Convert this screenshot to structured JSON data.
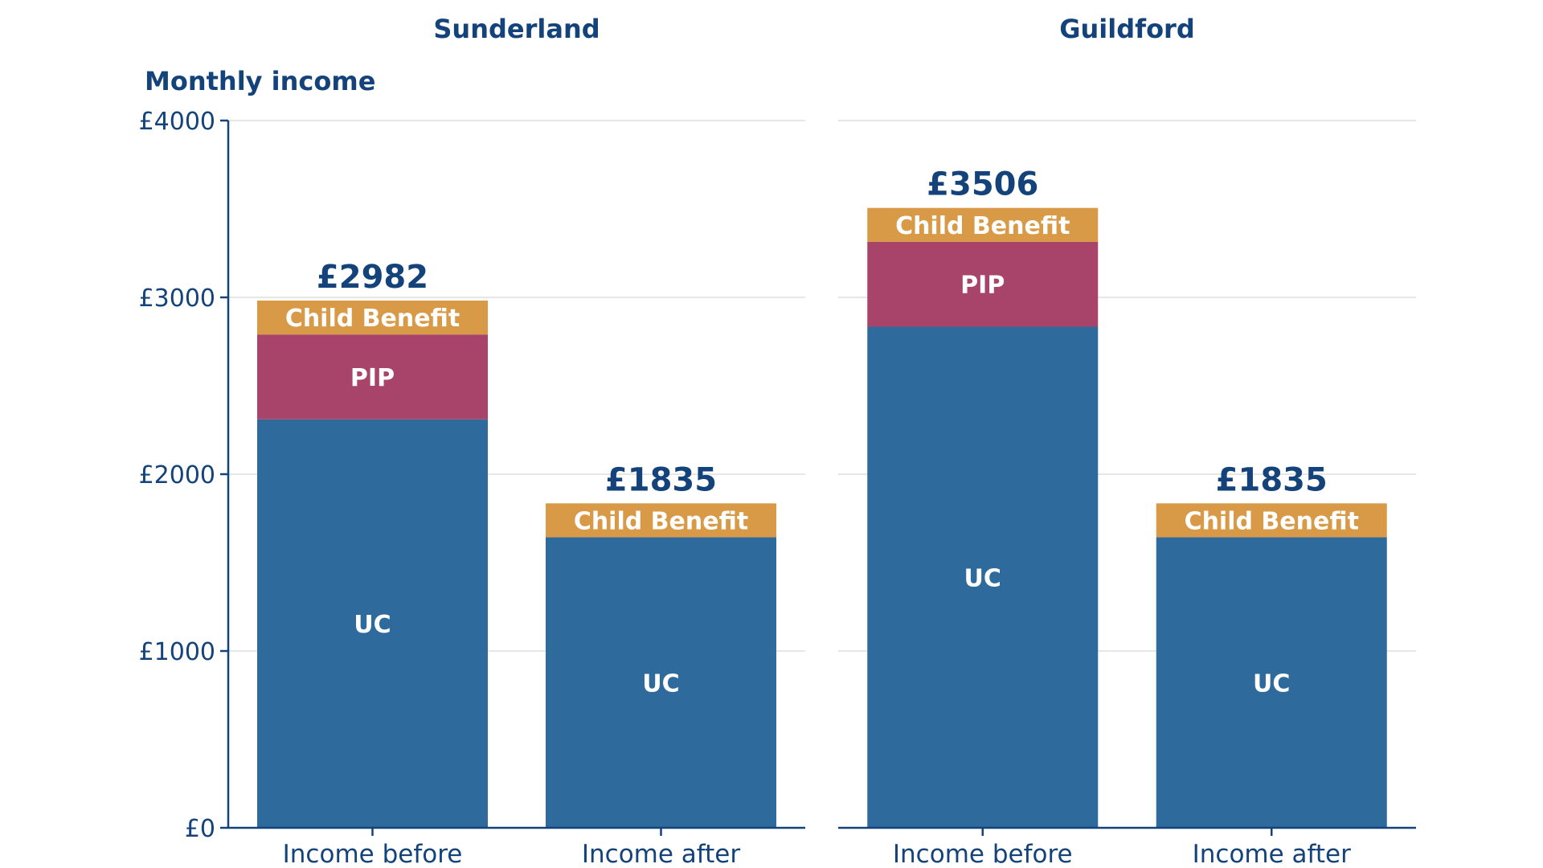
{
  "chart_data": {
    "type": "bar",
    "stacked": true,
    "axis_title": "Monthly income",
    "y_ticks": [
      "£0",
      "£1000",
      "£2000",
      "£3000",
      "£4000"
    ],
    "ylim": [
      0,
      4000
    ],
    "grid": true,
    "colors": {
      "UC": "#2f6a9c",
      "PIP": "#a8436a",
      "Child Benefit": "#d99a48",
      "text": "#13437a"
    },
    "panels": [
      {
        "title": "Sunderland",
        "bars": [
          {
            "category": "Income before",
            "total_label": "£2982",
            "segments": [
              {
                "name": "UC",
                "value": 2310
              },
              {
                "name": "PIP",
                "value": 480
              },
              {
                "name": "Child Benefit",
                "value": 192
              }
            ]
          },
          {
            "category": "Income after",
            "total_label": "£1835",
            "segments": [
              {
                "name": "UC",
                "value": 1643
              },
              {
                "name": "Child Benefit",
                "value": 192
              }
            ]
          }
        ]
      },
      {
        "title": "Guildford",
        "bars": [
          {
            "category": "Income before",
            "total_label": "£3506",
            "segments": [
              {
                "name": "UC",
                "value": 2834
              },
              {
                "name": "PIP",
                "value": 480
              },
              {
                "name": "Child Benefit",
                "value": 192
              }
            ]
          },
          {
            "category": "Income after",
            "total_label": "£1835",
            "segments": [
              {
                "name": "UC",
                "value": 1643
              },
              {
                "name": "Child Benefit",
                "value": 192
              }
            ]
          }
        ]
      }
    ]
  }
}
